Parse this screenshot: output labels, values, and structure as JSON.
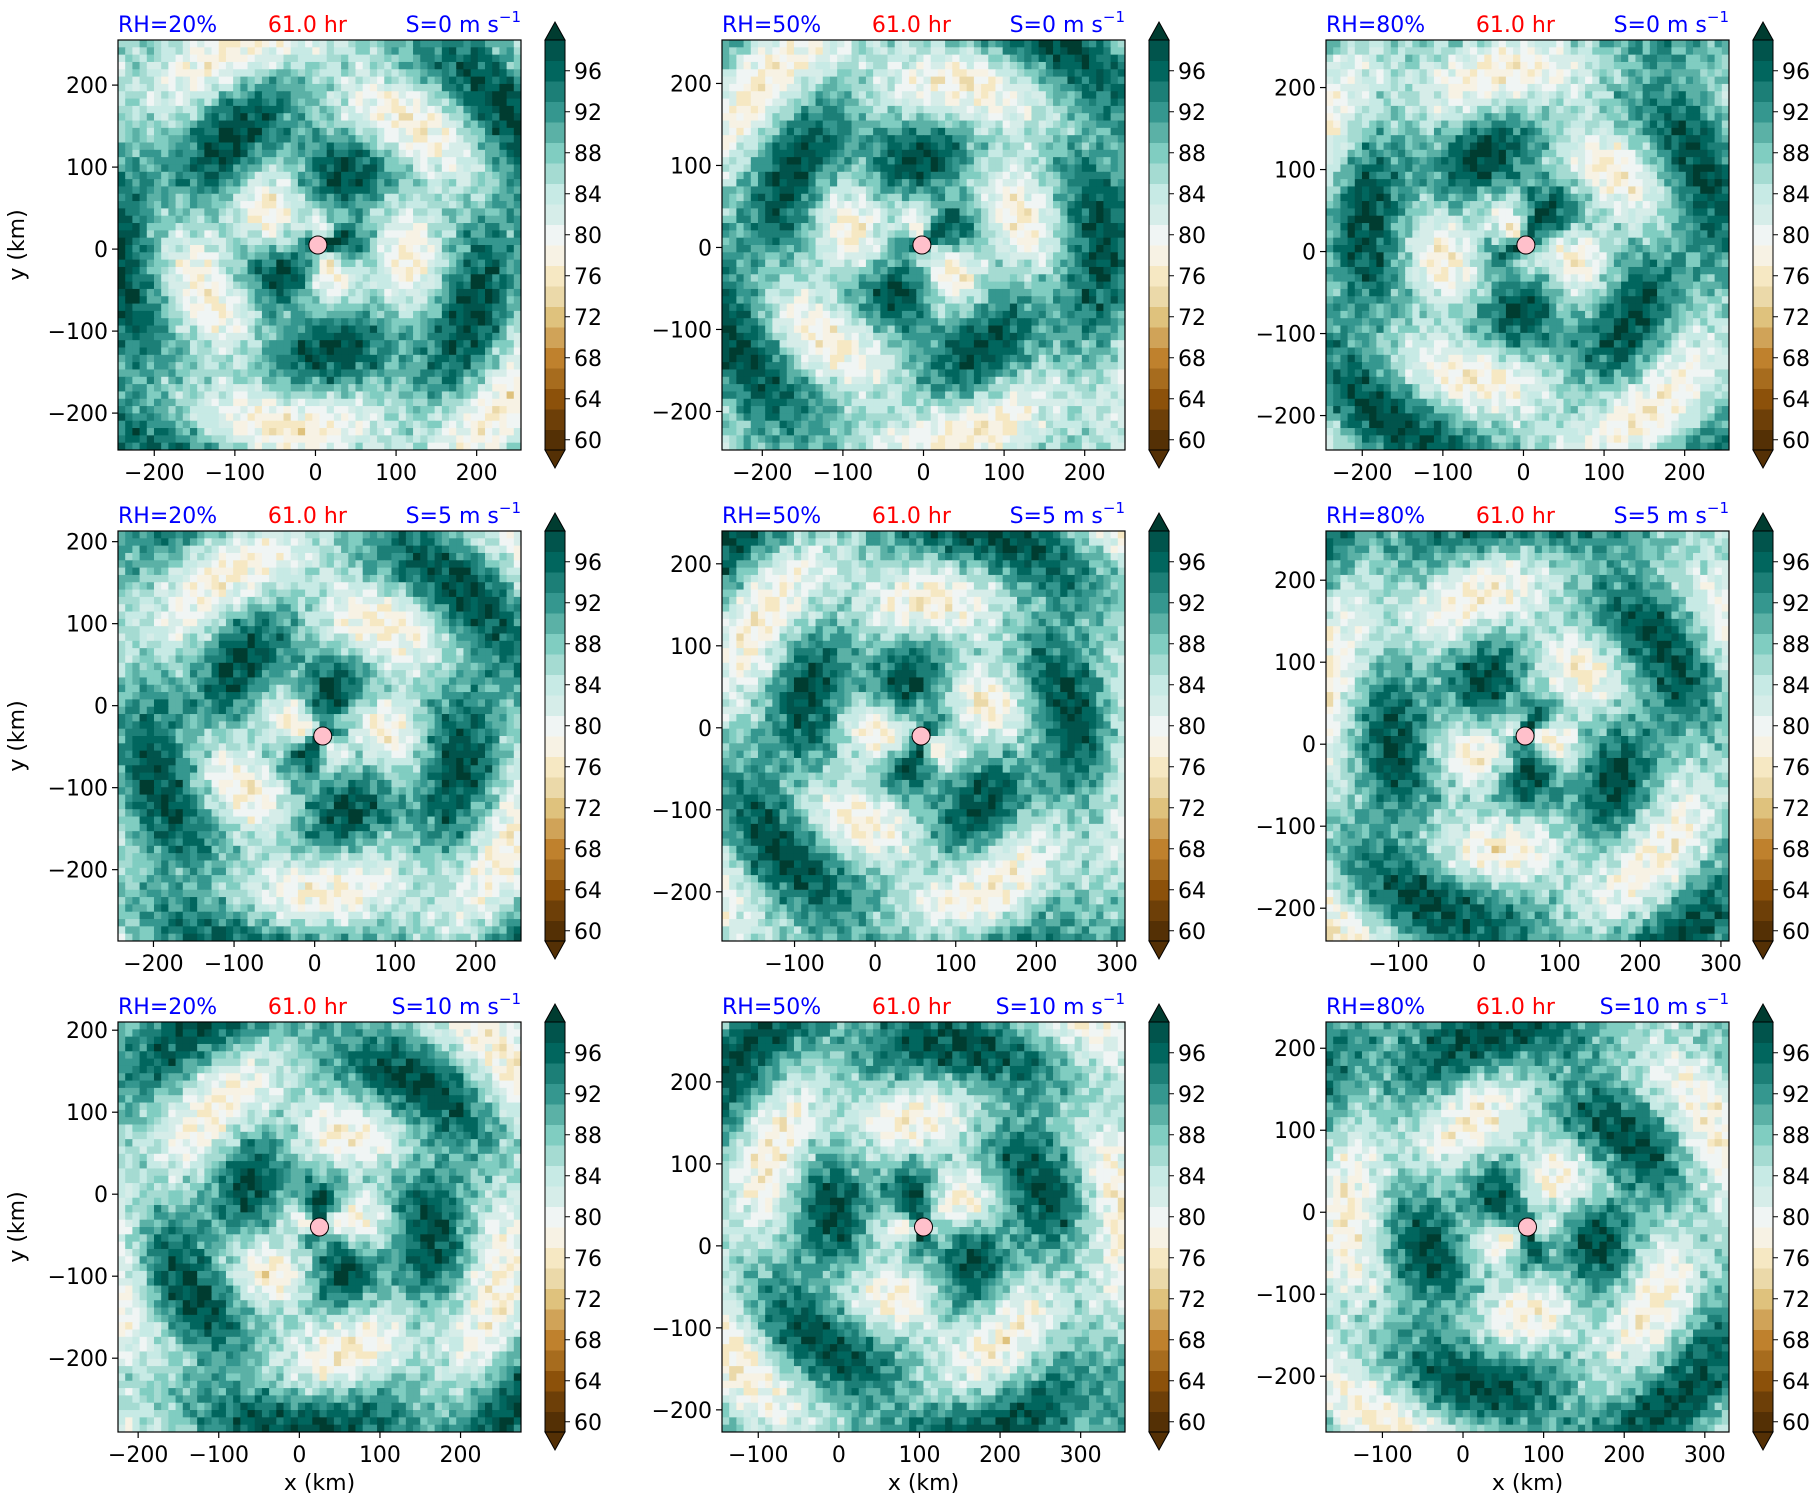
{
  "figure": {
    "time_label": "61.0 hr",
    "xlabel": "x (km)",
    "ylabel": "y (km)",
    "colors": {
      "label_blue": "#0000ff",
      "label_red": "#ff0000",
      "center_marker": "#ffc0cb"
    }
  },
  "colorbar": {
    "ticks": [
      "60",
      "64",
      "68",
      "72",
      "76",
      "80",
      "84",
      "88",
      "92",
      "96"
    ],
    "levels": [
      60,
      62,
      64,
      66,
      68,
      70,
      72,
      74,
      76,
      78,
      80,
      82,
      84,
      86,
      88,
      90,
      92,
      94,
      96,
      98
    ],
    "colors": [
      "#543005",
      "#6d3f08",
      "#8c510a",
      "#a76c1e",
      "#bf812d",
      "#d0a358",
      "#dfc27d",
      "#ebd9a9",
      "#f6e8c3",
      "#f7f2e4",
      "#f0f5f4",
      "#d6ede9",
      "#c7eae5",
      "#a5dbd2",
      "#80cdc1",
      "#5bb1a6",
      "#35978f",
      "#1c7f77",
      "#01665e",
      "#01544c"
    ],
    "under_color": "#543005",
    "over_color": "#003c30"
  },
  "chart_data": [
    {
      "type": "heatmap",
      "rh_label": "RH=20%",
      "time_label": "61.0 hr",
      "shear_label": "S=0 m s",
      "shear_exp": "−1",
      "xlim": [
        -245,
        255
      ],
      "ylim": [
        -245,
        255
      ],
      "xticks": [
        -200,
        -100,
        0,
        100,
        200
      ],
      "yticks": [
        -200,
        -100,
        0,
        100,
        200
      ],
      "xtick_labels": [
        "−200",
        "−100",
        "0",
        "100",
        "200"
      ],
      "ytick_labels": [
        "−200",
        "−100",
        "0",
        "100",
        "200"
      ],
      "center": [
        3,
        5
      ]
    },
    {
      "type": "heatmap",
      "rh_label": "RH=50%",
      "time_label": "61.0 hr",
      "shear_label": "S=0 m s",
      "shear_exp": "−1",
      "xlim": [
        -250,
        250
      ],
      "ylim": [
        -247,
        253
      ],
      "xticks": [
        -200,
        -100,
        0,
        100,
        200
      ],
      "yticks": [
        -200,
        -100,
        0,
        100,
        200
      ],
      "xtick_labels": [
        "−200",
        "−100",
        "0",
        "100",
        "200"
      ],
      "ytick_labels": [
        "−200",
        "−100",
        "0",
        "100",
        "200"
      ],
      "center": [
        -2,
        3
      ]
    },
    {
      "type": "heatmap",
      "rh_label": "RH=80%",
      "time_label": "61.0 hr",
      "shear_label": "S=0 m s",
      "shear_exp": "−1",
      "xlim": [
        -245,
        255
      ],
      "ylim": [
        -242,
        258
      ],
      "xticks": [
        -200,
        -100,
        0,
        100,
        200
      ],
      "yticks": [
        -200,
        -100,
        0,
        100,
        200
      ],
      "xtick_labels": [
        "−200",
        "−100",
        "0",
        "100",
        "200"
      ],
      "ytick_labels": [
        "−200",
        "−100",
        "0",
        "100",
        "200"
      ],
      "center": [
        3,
        8
      ]
    },
    {
      "type": "heatmap",
      "rh_label": "RH=20%",
      "time_label": "61.0 hr",
      "shear_label": "S=5 m s",
      "shear_exp": "−1",
      "xlim": [
        -244,
        256
      ],
      "ylim": [
        -287,
        213
      ],
      "xticks": [
        -200,
        -100,
        0,
        100,
        200
      ],
      "yticks": [
        -200,
        -100,
        0,
        100,
        200
      ],
      "xtick_labels": [
        "−200",
        "−100",
        "0",
        "100",
        "200"
      ],
      "ytick_labels": [
        "−200",
        "−100",
        "0",
        "100",
        "200"
      ],
      "center": [
        10,
        -37
      ]
    },
    {
      "type": "heatmap",
      "rh_label": "RH=50%",
      "time_label": "61.0 hr",
      "shear_label": "S=5 m s",
      "shear_exp": "−1",
      "xlim": [
        -190,
        310
      ],
      "ylim": [
        -260,
        240
      ],
      "xticks": [
        -100,
        0,
        100,
        200,
        300
      ],
      "yticks": [
        -200,
        -100,
        0,
        100,
        200
      ],
      "xtick_labels": [
        "−100",
        "0",
        "100",
        "200",
        "300"
      ],
      "ytick_labels": [
        "−200",
        "−100",
        "0",
        "100",
        "200"
      ],
      "center": [
        57,
        -10
      ]
    },
    {
      "type": "heatmap",
      "rh_label": "RH=80%",
      "time_label": "61.0 hr",
      "shear_label": "S=5 m s",
      "shear_exp": "−1",
      "xlim": [
        -190,
        310
      ],
      "ylim": [
        -240,
        260
      ],
      "xticks": [
        -100,
        0,
        100,
        200,
        300
      ],
      "yticks": [
        -200,
        -100,
        0,
        100,
        200
      ],
      "xtick_labels": [
        "−100",
        "0",
        "100",
        "200",
        "300"
      ],
      "ytick_labels": [
        "−200",
        "−100",
        "0",
        "100",
        "200"
      ],
      "center": [
        57,
        10
      ]
    },
    {
      "type": "heatmap",
      "rh_label": "RH=20%",
      "time_label": "61.0 hr",
      "shear_label": "S=10 m s",
      "shear_exp": "−1",
      "xlim": [
        -225,
        275
      ],
      "ylim": [
        -290,
        210
      ],
      "xticks": [
        -200,
        -100,
        0,
        100,
        200
      ],
      "yticks": [
        -200,
        -100,
        0,
        100,
        200
      ],
      "xtick_labels": [
        "−200",
        "−100",
        "0",
        "100",
        "200"
      ],
      "ytick_labels": [
        "−200",
        "−100",
        "0",
        "100",
        "200"
      ],
      "center": [
        25,
        -40
      ]
    },
    {
      "type": "heatmap",
      "rh_label": "RH=50%",
      "time_label": "61.0 hr",
      "shear_label": "S=10 m s",
      "shear_exp": "−1",
      "xlim": [
        -145,
        355
      ],
      "ylim": [
        -227,
        273
      ],
      "xticks": [
        -100,
        0,
        100,
        200,
        300
      ],
      "yticks": [
        -200,
        -100,
        0,
        100,
        200
      ],
      "xtick_labels": [
        "−100",
        "0",
        "100",
        "200",
        "300"
      ],
      "ytick_labels": [
        "−200",
        "−100",
        "0",
        "100",
        "200"
      ],
      "center": [
        105,
        23
      ]
    },
    {
      "type": "heatmap",
      "rh_label": "RH=80%",
      "time_label": "61.0 hr",
      "shear_label": "S=10 m s",
      "shear_exp": "−1",
      "xlim": [
        -170,
        330
      ],
      "ylim": [
        -268,
        232
      ],
      "xticks": [
        -100,
        0,
        100,
        200,
        300
      ],
      "yticks": [
        -200,
        -100,
        0,
        100,
        200
      ],
      "xtick_labels": [
        "−100",
        "0",
        "100",
        "200",
        "300"
      ],
      "ytick_labels": [
        "−200",
        "−100",
        "0",
        "100",
        "200"
      ],
      "center": [
        80,
        -18
      ]
    }
  ]
}
